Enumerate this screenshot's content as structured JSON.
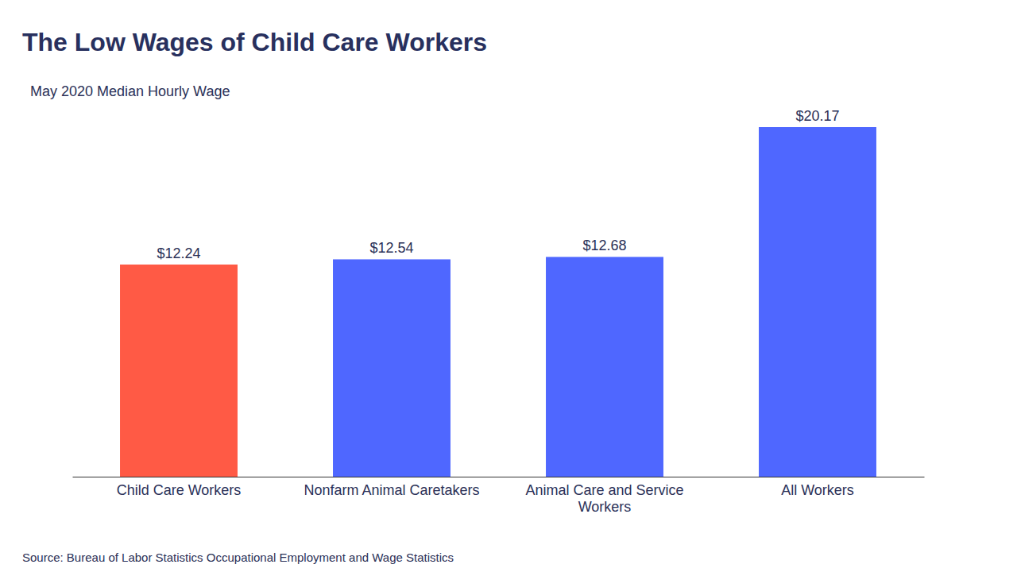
{
  "chart_data": {
    "type": "bar",
    "title": "The Low Wages of Child Care Workers",
    "subtitle": "May 2020 Median Hourly Wage",
    "categories": [
      "Child Care Workers",
      "Nonfarm Animal Caretakers",
      "Animal Care and Service Workers",
      "All Workers"
    ],
    "values": [
      12.24,
      12.54,
      12.68,
      20.17
    ],
    "value_labels": [
      "$12.24",
      "$12.54",
      "$12.68",
      "$20.17"
    ],
    "colors": [
      "#ff5a45",
      "#4f67ff",
      "#4f67ff",
      "#4f67ff"
    ],
    "data_labels": true,
    "tick_labels": "x",
    "source": "Source: Bureau of Labor Statistics Occupational Employment and Wage Statistics"
  }
}
